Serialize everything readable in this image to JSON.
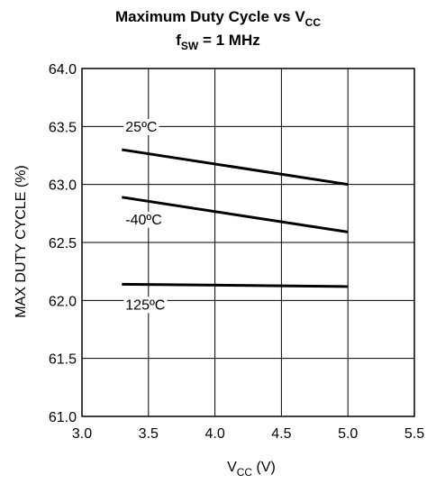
{
  "chart_data": {
    "type": "line",
    "title": {
      "line1_main": "Maximum Duty Cycle vs V",
      "line1_sub": "CC",
      "line2_main": "f",
      "line2_sub": "SW",
      "line2_rest": " = 1 MHz"
    },
    "xlabel": {
      "main": "V",
      "sub": "CC",
      "rest": " (V)"
    },
    "ylabel": "MAX DUTY CYCLE (%)",
    "xlim": [
      3.0,
      5.5
    ],
    "ylim": [
      61.0,
      64.0
    ],
    "x_ticks": [
      "3.0",
      "3.5",
      "4.0",
      "4.5",
      "5.0",
      "5.5"
    ],
    "y_ticks": [
      "61.0",
      "61.5",
      "62.0",
      "62.5",
      "63.0",
      "63.5",
      "64.0"
    ],
    "grid": true,
    "series": [
      {
        "name": "25ºC",
        "x": [
          3.3,
          5.0
        ],
        "y": [
          63.3,
          63.0
        ]
      },
      {
        "name": "-40ºC",
        "x": [
          3.3,
          5.0
        ],
        "y": [
          62.89,
          62.59
        ]
      },
      {
        "name": "125ºC",
        "x": [
          3.3,
          5.0
        ],
        "y": [
          62.14,
          62.12
        ]
      }
    ],
    "annotations": [
      {
        "text": "25ºC",
        "series": 0
      },
      {
        "text": "-40ºC",
        "series": 1
      },
      {
        "text": "125ºC",
        "series": 2
      }
    ],
    "colors": {
      "line": "#000000",
      "grid": "#000000",
      "background": "#ffffff"
    }
  }
}
